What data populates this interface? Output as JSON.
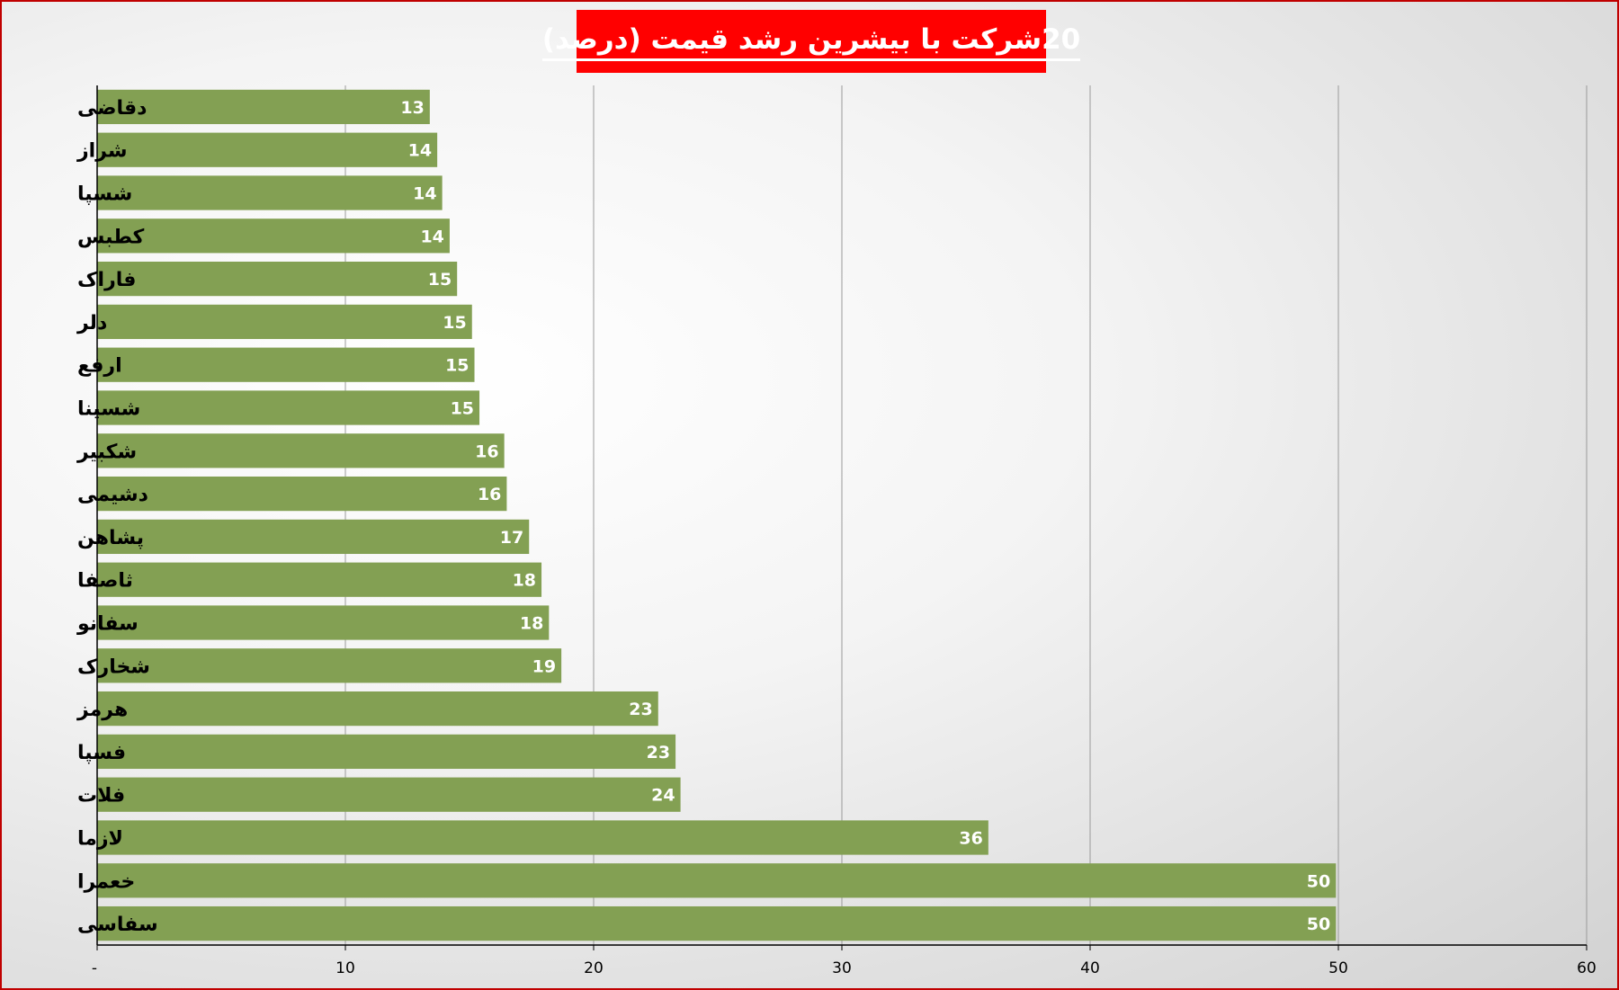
{
  "chart_data": {
    "type": "bar",
    "orientation": "horizontal",
    "title": "20شرکت با بیشرین رشد قیمت (درصد)",
    "categories": [
      "دقاضی",
      "شراز",
      "شسپا",
      "کطبس",
      "فاراک",
      "دلر",
      "ارفع",
      "شسینا",
      "شکبیر",
      "دشیمی",
      "پشاهن",
      "ثاصفا",
      "سفانو",
      "شخارک",
      "هرمز",
      "فسپا",
      "فلات",
      "لازما",
      "خعمرا",
      "سفاسی"
    ],
    "values": [
      13.4,
      13.7,
      13.9,
      14.2,
      14.5,
      15.1,
      15.2,
      15.4,
      16.4,
      16.5,
      17.4,
      17.9,
      18.2,
      18.7,
      22.6,
      23.3,
      23.5,
      35.9,
      49.9,
      49.9
    ],
    "data_labels": [
      "13",
      "14",
      "14",
      "14",
      "15",
      "15",
      "15",
      "15",
      "16",
      "16",
      "17",
      "18",
      "18",
      "19",
      "23",
      "23",
      "24",
      "36",
      "50",
      "50"
    ],
    "xlim": [
      0,
      60
    ],
    "x_ticks": [
      0,
      10,
      20,
      30,
      40,
      50,
      60
    ],
    "x_tick_labels": [
      "-",
      "10",
      "20",
      "30",
      "40",
      "50",
      "60"
    ],
    "grid": true,
    "legend": "none",
    "colors": {
      "bar": "#83a053",
      "title_bg": "#ff0000",
      "title_text": "#ffffff",
      "frame": "#c00000",
      "grid": "#9a9a9a"
    }
  }
}
